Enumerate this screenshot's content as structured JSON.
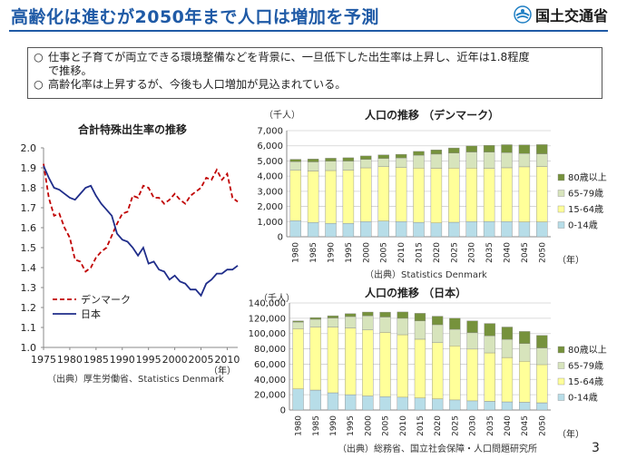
{
  "header": {
    "title": "高齢化は進むが2050年まで人口は増加を予測",
    "logo_text": "国土交通省",
    "logo_icon": "mlit-logo-icon"
  },
  "summary": {
    "bullet_symbol": "○",
    "points": [
      "仕事と子育てが両立できる環境整備などを背景に、一旦低下した出生率は上昇し、近年は1.8程度",
      "で推移。",
      "高齢化率は上昇するが、今後も人口増加が見込まれている。"
    ]
  },
  "page_number": "3",
  "chart_data": [
    {
      "type": "line",
      "title": "合計特殊出生率の推移",
      "x_unit_label": "（年）",
      "xlim": [
        1975,
        2012
      ],
      "ylim": [
        1.0,
        2.0
      ],
      "y_ticks": [
        "1.0",
        "1.1",
        "1.2",
        "1.3",
        "1.4",
        "1.5",
        "1.6",
        "1.7",
        "1.8",
        "1.9",
        "2.0"
      ],
      "x_ticks": [
        "1975",
        "1980",
        "1985",
        "1990",
        "1995",
        "2000",
        "2005",
        "2010"
      ],
      "source": "（出典）厚生労働省、Statistics Denmark",
      "legend_position": "bottom-left",
      "series": [
        {
          "name": "デンマーク",
          "color": "#c00000",
          "dash": true,
          "points": [
            [
              1975,
              1.92
            ],
            [
              1976,
              1.75
            ],
            [
              1977,
              1.66
            ],
            [
              1978,
              1.67
            ],
            [
              1979,
              1.6
            ],
            [
              1980,
              1.55
            ],
            [
              1981,
              1.44
            ],
            [
              1982,
              1.43
            ],
            [
              1983,
              1.38
            ],
            [
              1984,
              1.4
            ],
            [
              1985,
              1.45
            ],
            [
              1986,
              1.48
            ],
            [
              1987,
              1.5
            ],
            [
              1988,
              1.56
            ],
            [
              1989,
              1.62
            ],
            [
              1990,
              1.67
            ],
            [
              1991,
              1.68
            ],
            [
              1992,
              1.76
            ],
            [
              1993,
              1.75
            ],
            [
              1994,
              1.81
            ],
            [
              1995,
              1.8
            ],
            [
              1996,
              1.75
            ],
            [
              1997,
              1.75
            ],
            [
              1998,
              1.72
            ],
            [
              1999,
              1.74
            ],
            [
              2000,
              1.77
            ],
            [
              2001,
              1.74
            ],
            [
              2002,
              1.72
            ],
            [
              2003,
              1.76
            ],
            [
              2004,
              1.78
            ],
            [
              2005,
              1.8
            ],
            [
              2006,
              1.85
            ],
            [
              2007,
              1.84
            ],
            [
              2008,
              1.89
            ],
            [
              2009,
              1.84
            ],
            [
              2010,
              1.87
            ],
            [
              2011,
              1.75
            ],
            [
              2012,
              1.73
            ]
          ]
        },
        {
          "name": "日本",
          "color": "#1f2d8a",
          "dash": false,
          "points": [
            [
              1975,
              1.91
            ],
            [
              1976,
              1.85
            ],
            [
              1977,
              1.8
            ],
            [
              1978,
              1.79
            ],
            [
              1979,
              1.77
            ],
            [
              1980,
              1.75
            ],
            [
              1981,
              1.74
            ],
            [
              1982,
              1.77
            ],
            [
              1983,
              1.8
            ],
            [
              1984,
              1.81
            ],
            [
              1985,
              1.76
            ],
            [
              1986,
              1.72
            ],
            [
              1987,
              1.69
            ],
            [
              1988,
              1.66
            ],
            [
              1989,
              1.57
            ],
            [
              1990,
              1.54
            ],
            [
              1991,
              1.53
            ],
            [
              1992,
              1.5
            ],
            [
              1993,
              1.46
            ],
            [
              1994,
              1.5
            ],
            [
              1995,
              1.42
            ],
            [
              1996,
              1.43
            ],
            [
              1997,
              1.39
            ],
            [
              1998,
              1.38
            ],
            [
              1999,
              1.34
            ],
            [
              2000,
              1.36
            ],
            [
              2001,
              1.33
            ],
            [
              2002,
              1.32
            ],
            [
              2003,
              1.29
            ],
            [
              2004,
              1.29
            ],
            [
              2005,
              1.26
            ],
            [
              2006,
              1.32
            ],
            [
              2007,
              1.34
            ],
            [
              2008,
              1.37
            ],
            [
              2009,
              1.37
            ],
            [
              2010,
              1.39
            ],
            [
              2011,
              1.39
            ],
            [
              2012,
              1.41
            ]
          ]
        }
      ]
    },
    {
      "type": "bar",
      "stacked": true,
      "title": "人口の推移 （デンマーク）",
      "unit_label": "（千人）",
      "x_unit_label": "（年）",
      "ylim": [
        0,
        7000
      ],
      "y_ticks": [
        "0",
        "1,000",
        "2,000",
        "3,000",
        "4,000",
        "5,000",
        "6,000",
        "7,000"
      ],
      "categories": [
        "1980",
        "1985",
        "1990",
        "1995",
        "2000",
        "2005",
        "2010",
        "2015",
        "2020",
        "2025",
        "2030",
        "2035",
        "2040",
        "2045",
        "2050"
      ],
      "source": "（出典）Statistics Denmark",
      "legend_position": "right",
      "series": [
        {
          "name": "0-14歳",
          "color": "#b7dde8",
          "values": [
            1060,
            940,
            880,
            880,
            1000,
            1040,
            1000,
            950,
            920,
            960,
            1000,
            1010,
            1000,
            980,
            980
          ]
        },
        {
          "name": "15-64歳",
          "color": "#ffff99",
          "values": [
            3330,
            3400,
            3490,
            3510,
            3550,
            3580,
            3560,
            3580,
            3600,
            3570,
            3530,
            3500,
            3550,
            3630,
            3650
          ]
        },
        {
          "name": "65-79歳",
          "color": "#d7e4bc",
          "values": [
            560,
            600,
            610,
            600,
            550,
            540,
            640,
            850,
            930,
            990,
            1060,
            1070,
            1000,
            880,
            840
          ]
        },
        {
          "name": "80歳以上",
          "color": "#76923c",
          "values": [
            160,
            190,
            200,
            220,
            230,
            240,
            240,
            250,
            280,
            340,
            400,
            450,
            520,
            570,
            610
          ]
        }
      ]
    },
    {
      "type": "bar",
      "stacked": true,
      "title": "人口の推移 （日本）",
      "unit_label": "（千人）",
      "x_unit_label": "（年）",
      "ylim": [
        0,
        140000
      ],
      "y_ticks": [
        "0",
        "20,000",
        "40,000",
        "60,000",
        "80,000",
        "100,000",
        "120,000",
        "140,000"
      ],
      "categories": [
        "1980",
        "1985",
        "1990",
        "1995",
        "2000",
        "2005",
        "2010",
        "2015",
        "2020",
        "2025",
        "2030",
        "2035",
        "2040",
        "2045",
        "2050"
      ],
      "source": "（出典）総務省、国立社会保障・人口問題研究所",
      "legend_position": "right",
      "series": [
        {
          "name": "0-14歳",
          "color": "#b7dde8",
          "values": [
            27500,
            26000,
            22500,
            20000,
            18500,
            17500,
            16800,
            15800,
            14600,
            13200,
            12000,
            11300,
            10700,
            10200,
            9400
          ]
        },
        {
          "name": "15-64歳",
          "color": "#ffff99",
          "values": [
            78800,
            82500,
            85900,
            87200,
            86200,
            84100,
            81700,
            76800,
            73400,
            70800,
            67700,
            63400,
            57900,
            53500,
            50000
          ]
        },
        {
          "name": "65-79歳",
          "color": "#d7e4bc",
          "values": [
            8700,
            10200,
            11900,
            15000,
            18500,
            20000,
            21500,
            23900,
            23600,
            21600,
            21300,
            22200,
            23900,
            23100,
            21800
          ]
        },
        {
          "name": "80歳以上",
          "color": "#76923c",
          "values": [
            1600,
            2200,
            3000,
            3800,
            4900,
            6400,
            8300,
            10000,
            11100,
            14500,
            15600,
            16300,
            16100,
            15900,
            16500
          ]
        }
      ]
    }
  ]
}
